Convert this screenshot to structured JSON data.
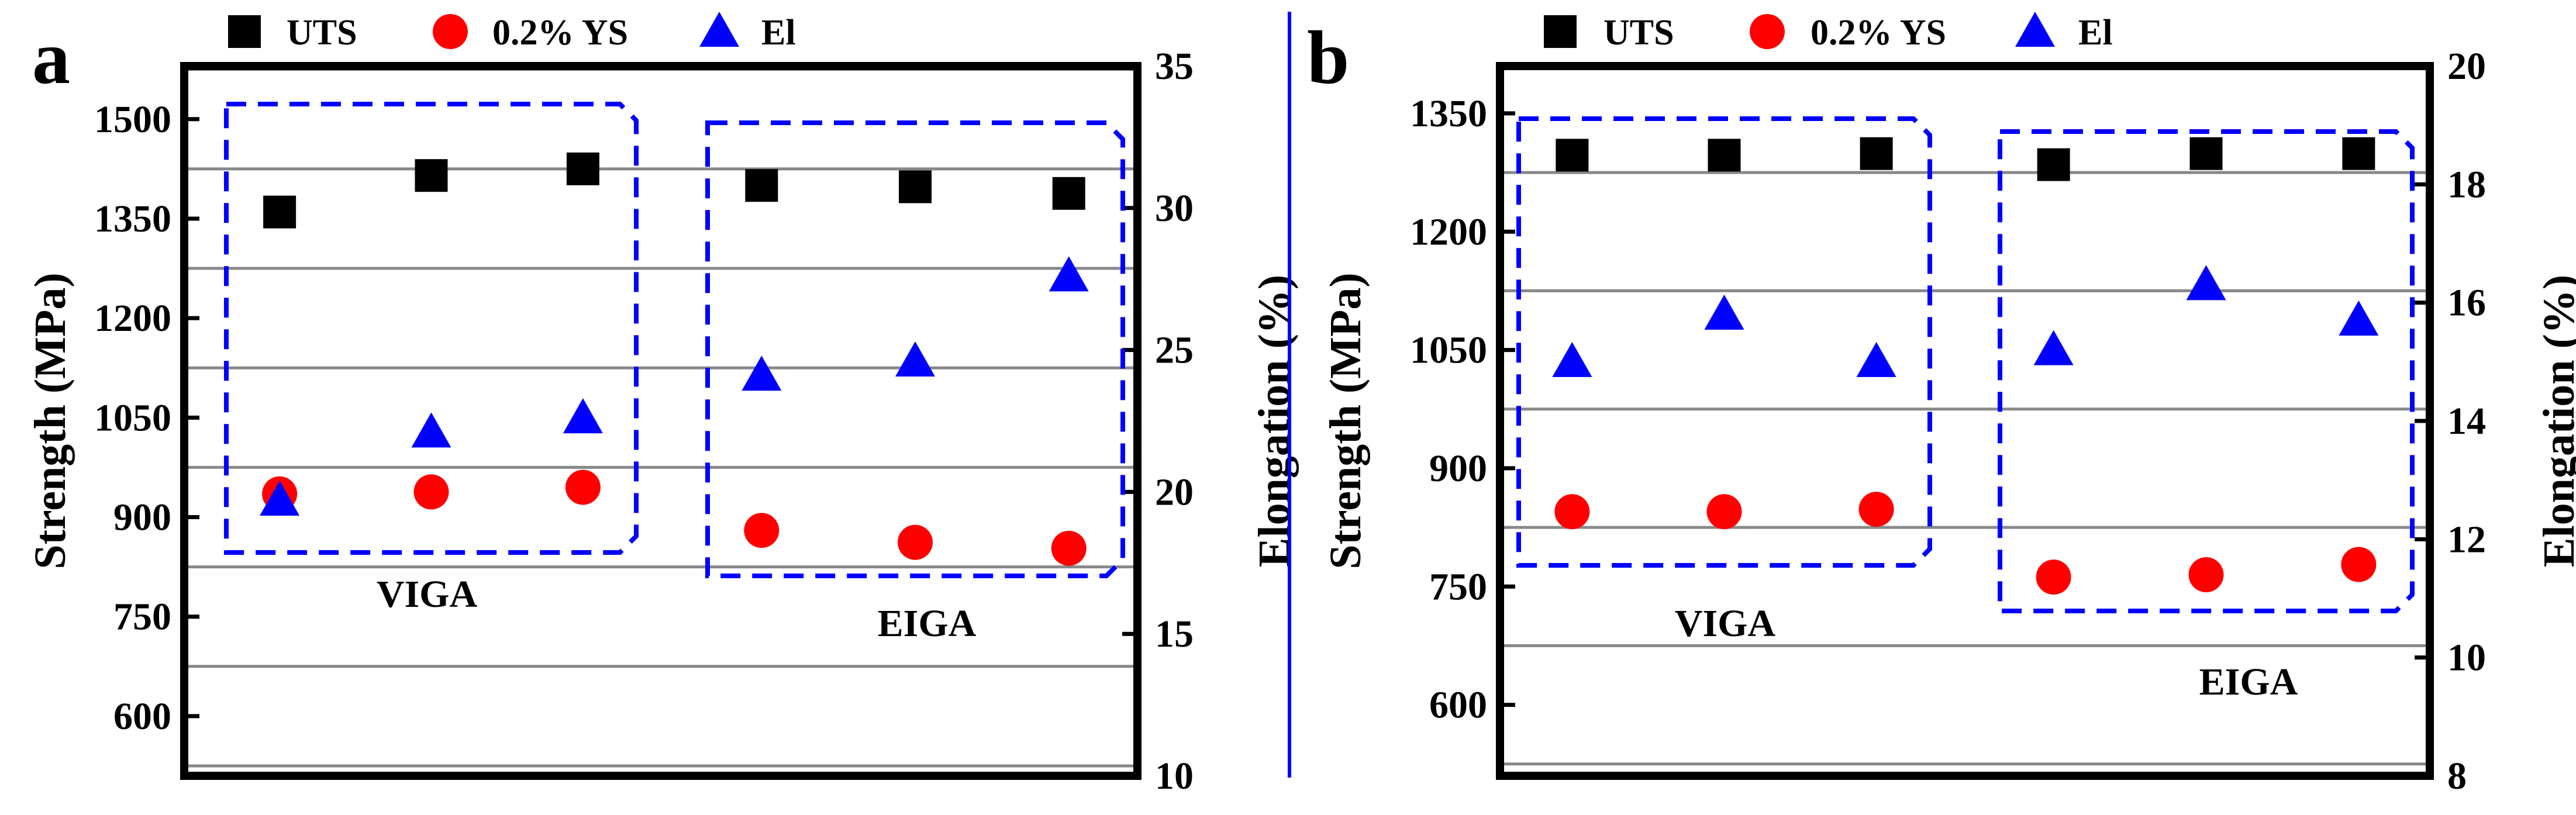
{
  "chart_data": [
    {
      "type": "scatter",
      "panel_label": "a",
      "categories": [
        "VIGA",
        "VIGA",
        "VIGA",
        "EIGA",
        "EIGA",
        "EIGA"
      ],
      "groups": [
        "VIGA",
        "EIGA"
      ],
      "ylabel": "Strength (MPa)",
      "y2label": "Elongation (%)",
      "ylim": [
        510,
        1580
      ],
      "y2lim": [
        10,
        35
      ],
      "yticks": [
        600,
        750,
        900,
        1050,
        1200,
        1350,
        1500
      ],
      "y2ticks": [
        10,
        15,
        20,
        25,
        30,
        35
      ],
      "grid": true,
      "legend": "top",
      "series": [
        {
          "name": "UTS",
          "axis": "left",
          "marker": "square",
          "color": "#000000",
          "values": [
            1360,
            1415,
            1425,
            1400,
            1398,
            1388
          ]
        },
        {
          "name": "0.2% YS",
          "axis": "left",
          "marker": "circle",
          "color": "#ff0000",
          "values": [
            935,
            938,
            945,
            880,
            862,
            853
          ]
        },
        {
          "name": "El",
          "axis": "right",
          "marker": "triangle",
          "color": "#0000ff",
          "values": [
            19.7,
            22.1,
            22.6,
            24.1,
            24.6,
            27.6
          ]
        }
      ]
    },
    {
      "type": "scatter",
      "panel_label": "b",
      "categories": [
        "VIGA",
        "VIGA",
        "VIGA",
        "EIGA",
        "EIGA",
        "EIGA"
      ],
      "groups": [
        "VIGA",
        "EIGA"
      ],
      "ylabel": "Strength (MPa)",
      "y2label": "Elongation (%)",
      "ylim": [
        510,
        1410
      ],
      "y2lim": [
        8,
        20
      ],
      "yticks": [
        600,
        750,
        900,
        1050,
        1200,
        1350
      ],
      "y2ticks": [
        8,
        10,
        12,
        14,
        16,
        18,
        20
      ],
      "grid": true,
      "legend": "top",
      "series": [
        {
          "name": "UTS",
          "axis": "left",
          "marker": "square",
          "color": "#000000",
          "values": [
            1297,
            1297,
            1299,
            1285,
            1299,
            1299
          ]
        },
        {
          "name": "0.2% YS",
          "axis": "left",
          "marker": "circle",
          "color": "#ff0000",
          "values": [
            845,
            845,
            848,
            762,
            765,
            778
          ]
        },
        {
          "name": "El",
          "axis": "right",
          "marker": "triangle",
          "color": "#0000ff",
          "values": [
            15.0,
            15.8,
            15.0,
            15.2,
            16.3,
            15.7
          ]
        }
      ]
    }
  ],
  "colors": {
    "frame": "#000000",
    "grid": "#888888",
    "box": "#0000ff",
    "divider": "#0000ff"
  }
}
